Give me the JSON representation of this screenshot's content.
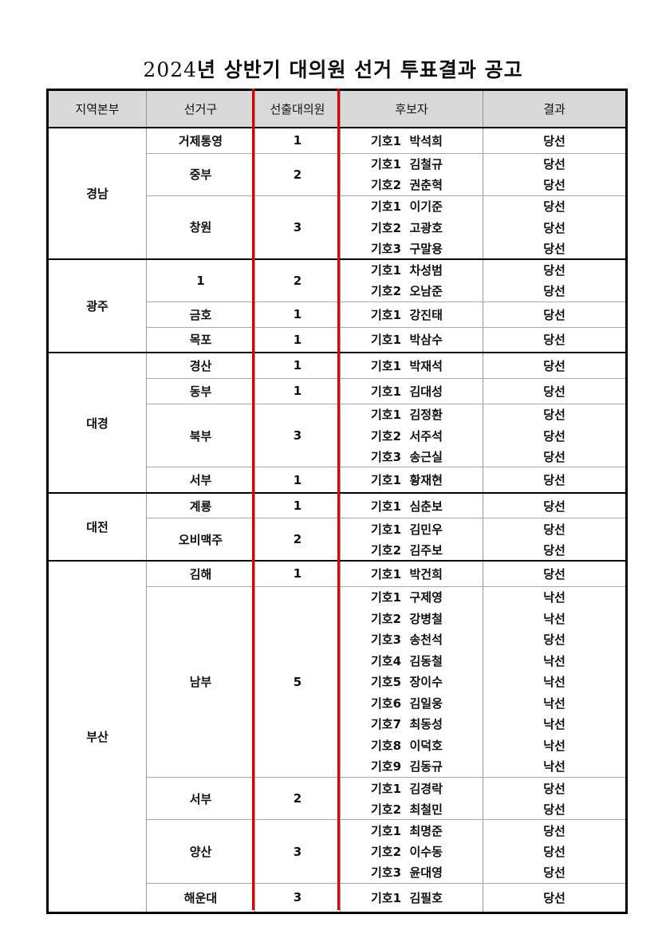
{
  "title": {
    "year": "2024",
    "rest": "년 상반기 대의원 선거 투표결과 공고"
  },
  "headers": [
    "지역본부",
    "선거구",
    "선출대의원",
    "후보자",
    "결과"
  ],
  "accent_color": "#e00000",
  "regions": [
    {
      "name": "경남",
      "districts": [
        {
          "name": "거제통영",
          "seats": "1",
          "candidates": [
            {
              "name": "기호1  박석희",
              "result": "당선"
            }
          ]
        },
        {
          "name": "중부",
          "seats": "2",
          "candidates": [
            {
              "name": "기호1  김철규",
              "result": "당선"
            },
            {
              "name": "기호2  권춘혁",
              "result": "당선"
            }
          ]
        },
        {
          "name": "창원",
          "seats": "3",
          "candidates": [
            {
              "name": "기호1  이기준",
              "result": "당선"
            },
            {
              "name": "기호2  고광호",
              "result": "당선"
            },
            {
              "name": "기호3  구말용",
              "result": "당선"
            }
          ]
        }
      ]
    },
    {
      "name": "광주",
      "districts": [
        {
          "name": "1",
          "seats": "2",
          "candidates": [
            {
              "name": "기호1  차성범",
              "result": "당선"
            },
            {
              "name": "기호2  오남준",
              "result": "당선"
            }
          ]
        },
        {
          "name": "금호",
          "seats": "1",
          "candidates": [
            {
              "name": "기호1  강진태",
              "result": "당선"
            }
          ]
        },
        {
          "name": "목포",
          "seats": "1",
          "candidates": [
            {
              "name": "기호1  박삼수",
              "result": "당선"
            }
          ]
        }
      ]
    },
    {
      "name": "대경",
      "districts": [
        {
          "name": "경산",
          "seats": "1",
          "candidates": [
            {
              "name": "기호1  박재석",
              "result": "당선"
            }
          ]
        },
        {
          "name": "동부",
          "seats": "1",
          "candidates": [
            {
              "name": "기호1  김대성",
              "result": "당선"
            }
          ]
        },
        {
          "name": "북부",
          "seats": "3",
          "candidates": [
            {
              "name": "기호1  김정환",
              "result": "당선"
            },
            {
              "name": "기호2  서주석",
              "result": "당선"
            },
            {
              "name": "기호3  송근실",
              "result": "당선"
            }
          ]
        },
        {
          "name": "서부",
          "seats": "1",
          "candidates": [
            {
              "name": "기호1  황재현",
              "result": "당선"
            }
          ]
        }
      ]
    },
    {
      "name": "대전",
      "districts": [
        {
          "name": "계룡",
          "seats": "1",
          "candidates": [
            {
              "name": "기호1  심춘보",
              "result": "당선"
            }
          ]
        },
        {
          "name": "오비맥주",
          "seats": "2",
          "candidates": [
            {
              "name": "기호1  김민우",
              "result": "당선"
            },
            {
              "name": "기호2  김주보",
              "result": "당선"
            }
          ]
        }
      ]
    },
    {
      "name": "부산",
      "districts": [
        {
          "name": "김해",
          "seats": "1",
          "candidates": [
            {
              "name": "기호1  박건희",
              "result": "당선"
            }
          ]
        },
        {
          "name": "남부",
          "seats": "5",
          "candidates": [
            {
              "name": "기호1  구제영",
              "result": "낙선"
            },
            {
              "name": "기호2  강병철",
              "result": "낙선"
            },
            {
              "name": "기호3  송천석",
              "result": "당선"
            },
            {
              "name": "기호4  김동철",
              "result": "낙선"
            },
            {
              "name": "기호5  장이수",
              "result": "낙선"
            },
            {
              "name": "기호6  김일웅",
              "result": "낙선"
            },
            {
              "name": "기호7  최동성",
              "result": "낙선"
            },
            {
              "name": "기호8  이덕호",
              "result": "낙선"
            },
            {
              "name": "기호9  김동규",
              "result": "낙선"
            }
          ]
        },
        {
          "name": "서부",
          "seats": "2",
          "candidates": [
            {
              "name": "기호1  김경락",
              "result": "당선"
            },
            {
              "name": "기호2  최철민",
              "result": "당선"
            }
          ]
        },
        {
          "name": "양산",
          "seats": "3",
          "candidates": [
            {
              "name": "기호1  최명준",
              "result": "당선"
            },
            {
              "name": "기호2  이수동",
              "result": "당선"
            },
            {
              "name": "기호3  윤대영",
              "result": "당선"
            }
          ]
        },
        {
          "name": "해운대",
          "seats": "3",
          "candidates": [
            {
              "name": "기호1  김필호",
              "result": "당선"
            }
          ]
        }
      ]
    }
  ]
}
